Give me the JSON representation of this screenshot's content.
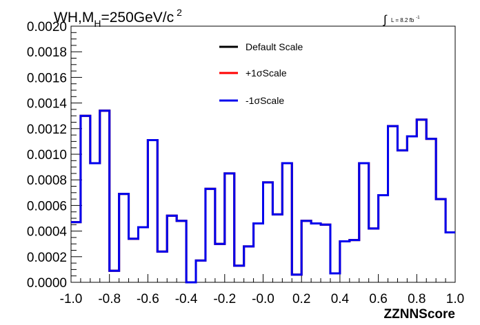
{
  "chart_data": {
    "type": "line",
    "title": {
      "main": "WH,M",
      "sub": "H",
      "tail": "=250GeV/c",
      "sup": "2"
    },
    "lumi": {
      "symbol": "∫",
      "text": "L = 8.2 fb",
      "sup": "-1"
    },
    "xlabel": "ZZNNScore",
    "ylabel": "",
    "xlim": [
      -1.0,
      1.0
    ],
    "ylim": [
      0.0,
      0.002
    ],
    "x_ticks": [
      "-1.0",
      "-0.8",
      "-0.6",
      "-0.4",
      "-0.2",
      "-0.0",
      "0.2",
      "0.4",
      "0.6",
      "0.8",
      "1.0"
    ],
    "y_ticks": [
      "0.0000",
      "0.0002",
      "0.0004",
      "0.0006",
      "0.0008",
      "0.0010",
      "0.0012",
      "0.0014",
      "0.0016",
      "0.0018",
      "0.0020"
    ],
    "grid": false,
    "legend_position": "top-center",
    "bin_edges": [
      -1.0,
      -0.95,
      -0.9,
      -0.85,
      -0.8,
      -0.75,
      -0.7,
      -0.65,
      -0.6,
      -0.55,
      -0.5,
      -0.45,
      -0.4,
      -0.35,
      -0.3,
      -0.25,
      -0.2,
      -0.15,
      -0.1,
      -0.05,
      0.0,
      0.05,
      0.1,
      0.15,
      0.2,
      0.25,
      0.3,
      0.35,
      0.4,
      0.45,
      0.5,
      0.55,
      0.6,
      0.65,
      0.7,
      0.75,
      0.8,
      0.85,
      0.9,
      0.95,
      1.0
    ],
    "series": [
      {
        "name": "Default Scale",
        "color": "#000000",
        "values": [
          0.00047,
          0.0013,
          0.00093,
          0.00134,
          9e-05,
          0.00069,
          0.00034,
          0.00043,
          0.00111,
          0.00024,
          0.00052,
          0.00048,
          0.0,
          0.00017,
          0.00073,
          0.0003,
          0.00085,
          0.00013,
          0.00028,
          0.00046,
          0.00078,
          0.00053,
          0.00093,
          6e-05,
          0.00048,
          0.00046,
          0.00045,
          7e-05,
          0.00032,
          0.00033,
          0.00093,
          0.00042,
          0.00068,
          0.00122,
          0.00103,
          0.00114,
          0.00127,
          0.00112,
          0.00065,
          0.00039
        ]
      },
      {
        "name": "+1σScale",
        "color": "#ff0000",
        "values": [
          0.00047,
          0.0013,
          0.00093,
          0.00134,
          9e-05,
          0.00069,
          0.00034,
          0.00043,
          0.00111,
          0.00024,
          0.00052,
          0.00048,
          0.0,
          0.00017,
          0.00073,
          0.0003,
          0.00085,
          0.00013,
          0.00028,
          0.00046,
          0.00078,
          0.00053,
          0.00093,
          6e-05,
          0.00048,
          0.00046,
          0.00045,
          7e-05,
          0.00032,
          0.00033,
          0.00093,
          0.00042,
          0.00068,
          0.00122,
          0.00103,
          0.00114,
          0.00127,
          0.00112,
          0.00065,
          0.00039
        ]
      },
      {
        "name": "-1σScale",
        "color": "#0000ee",
        "values": [
          0.00047,
          0.0013,
          0.00093,
          0.00134,
          9e-05,
          0.00069,
          0.00034,
          0.00043,
          0.00111,
          0.00024,
          0.00052,
          0.00048,
          0.0,
          0.00017,
          0.00073,
          0.0003,
          0.00085,
          0.00013,
          0.00028,
          0.00046,
          0.00078,
          0.00053,
          0.00093,
          6e-05,
          0.00048,
          0.00046,
          0.00045,
          7e-05,
          0.00032,
          0.00033,
          0.00093,
          0.00042,
          0.00068,
          0.00122,
          0.00103,
          0.00114,
          0.00127,
          0.00112,
          0.00065,
          0.00039
        ]
      }
    ]
  }
}
